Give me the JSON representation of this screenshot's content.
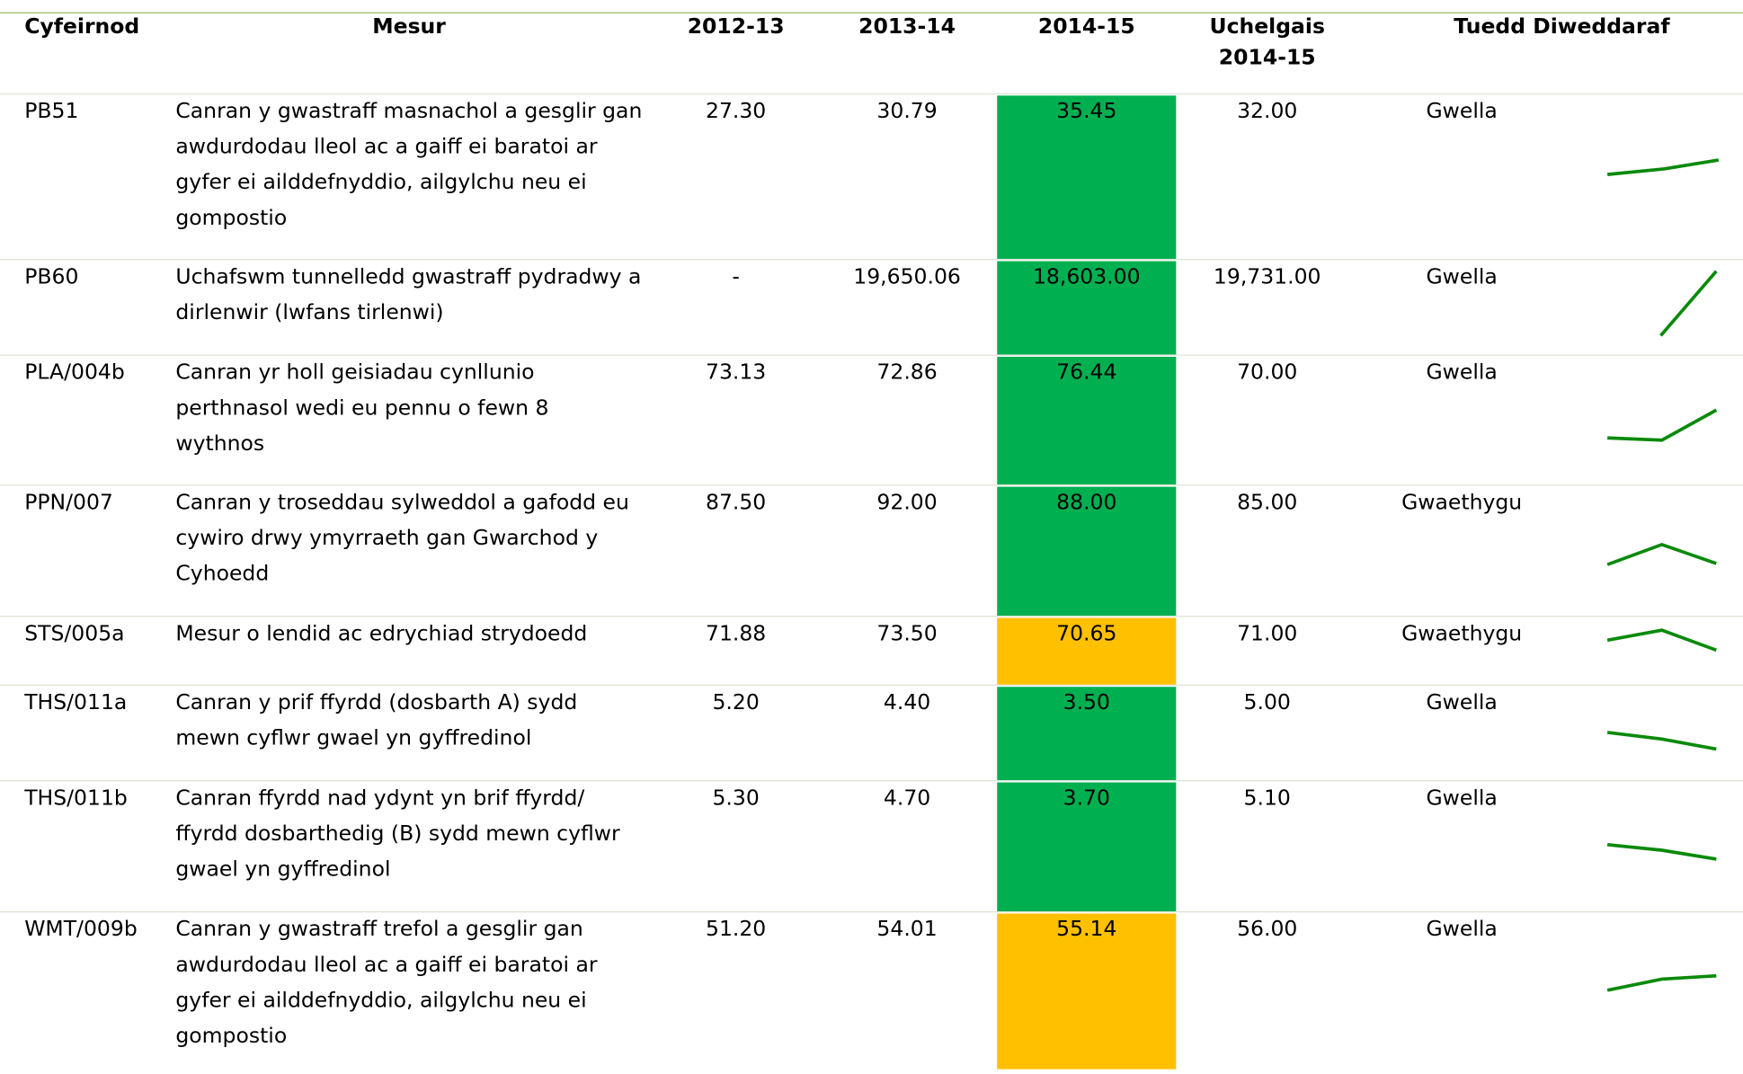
{
  "table": {
    "header": [
      "Cyfeirnod",
      "Mesur",
      "2012-13",
      "2013-14",
      "2014-15",
      "Uchelgais 2014-15",
      "Tuedd Diweddaraf"
    ],
    "rows": [
      {
        "cells": [
          "PB51",
          "Canran y gwastraff masnachol a gesglir gan awdurdodau lleol ac a gaiff ei baratoi ar gyfer ei ailddefnyddio, ailgylchu neu ei gompostio",
          "27.30",
          "30.79",
          "35.45",
          "32.00",
          "Gwella"
        ],
        "highlight": "#00b050"
      },
      {
        "cells": [
          "PB60",
          "Uchafswm tunnelledd gwastraff pydradwy a dirlenwir (lwfans tirlenwi)",
          "-",
          "19,650.06",
          "18,603.00",
          "19,731.00",
          "Gwella"
        ],
        "highlight": "#00b050"
      },
      {
        "cells": [
          "PLA/004b",
          "Canran yr holl geisiadau cynllunio perthnasol wedi eu pennu o fewn 8 wythnos",
          "73.13",
          "72.86",
          "76.44",
          "70.00",
          "Gwella"
        ],
        "highlight": "#00b050"
      },
      {
        "cells": [
          "PPN/007",
          "Canran y troseddau sylweddol a gafodd eu cywiro drwy ymyrraeth gan Gwarchod y Cyhoedd",
          "87.50",
          "92.00",
          "88.00",
          "85.00",
          "Gwaethygu"
        ],
        "highlight": "#00b050"
      },
      {
        "cells": [
          "STS/005a",
          "Mesur o lendid ac edrychiad strydoedd",
          "71.88",
          "73.50",
          "70.65",
          "71.00",
          "Gwaethygu"
        ],
        "highlight": "#ffc000"
      },
      {
        "cells": [
          "THS/011a",
          "Canran y prif ffyrdd (dosbarth A) sydd mewn cyflwr gwael yn gyffredinol",
          "5.20",
          "4.40",
          "3.50",
          "5.00",
          "Gwella"
        ],
        "highlight": "#00b050"
      },
      {
        "cells": [
          "THS/011b",
          "Canran ffyrdd nad ydynt yn brif ffyrdd/ ffyrdd dosbarthedig (B) sydd mewn cyflwr gwael yn gyffredinol",
          "5.30",
          "4.70",
          "3.70",
          "5.10",
          "Gwella"
        ],
        "highlight": "#00b050"
      },
      {
        "cells": [
          "WMT/009b",
          "Canran y gwastraff trefol a gesglir gan awdurdodau lleol ac a gaiff ei baratoi ar gyfer ei ailddefnyddio, ailgylchu neu ei gompostio",
          "51.20",
          "54.01",
          "55.14",
          "56.00",
          "Gwella"
        ],
        "highlight": "#ffc000"
      }
    ]
  }
}
